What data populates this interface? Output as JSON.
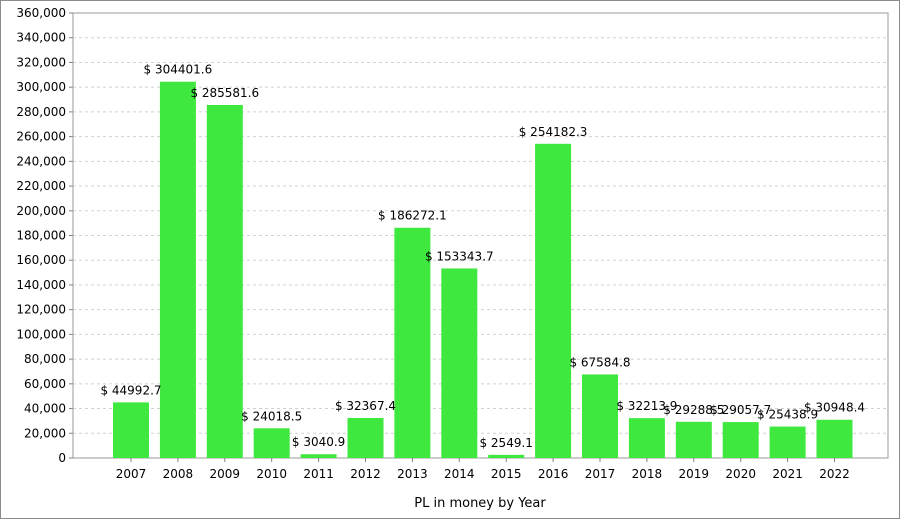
{
  "chart_data": {
    "type": "bar",
    "title": "",
    "xlabel": "PL in money by Year",
    "ylabel": "",
    "ylim": [
      0,
      360000
    ],
    "ytick_step": 20000,
    "grid": true,
    "legend": "none",
    "bar_color": "#3ee83e",
    "categories": [
      "2007",
      "2008",
      "2009",
      "2010",
      "2011",
      "2012",
      "2013",
      "2014",
      "2015",
      "2016",
      "2017",
      "2018",
      "2019",
      "2020",
      "2021",
      "2022"
    ],
    "values": [
      44992.7,
      304401.6,
      285581.6,
      24018.5,
      3040.9,
      32367.4,
      186272.1,
      153343.7,
      2549.1,
      254182.3,
      67584.8,
      32213.9,
      29288.5,
      29057.7,
      25438.9,
      30948.4
    ],
    "data_labels": [
      "$ 44992.7",
      "$ 304401.6",
      "$ 285581.6",
      "$ 24018.5",
      "$ 3040.9",
      "$ 32367.4",
      "$ 186272.1",
      "$ 153343.7",
      "$ 2549.1",
      "$ 254182.3",
      "$ 67584.8",
      "$ 32213.9",
      "$ 29288.5",
      "$ 29057.7",
      "$ 25438.9",
      "$ 30948.4"
    ]
  }
}
